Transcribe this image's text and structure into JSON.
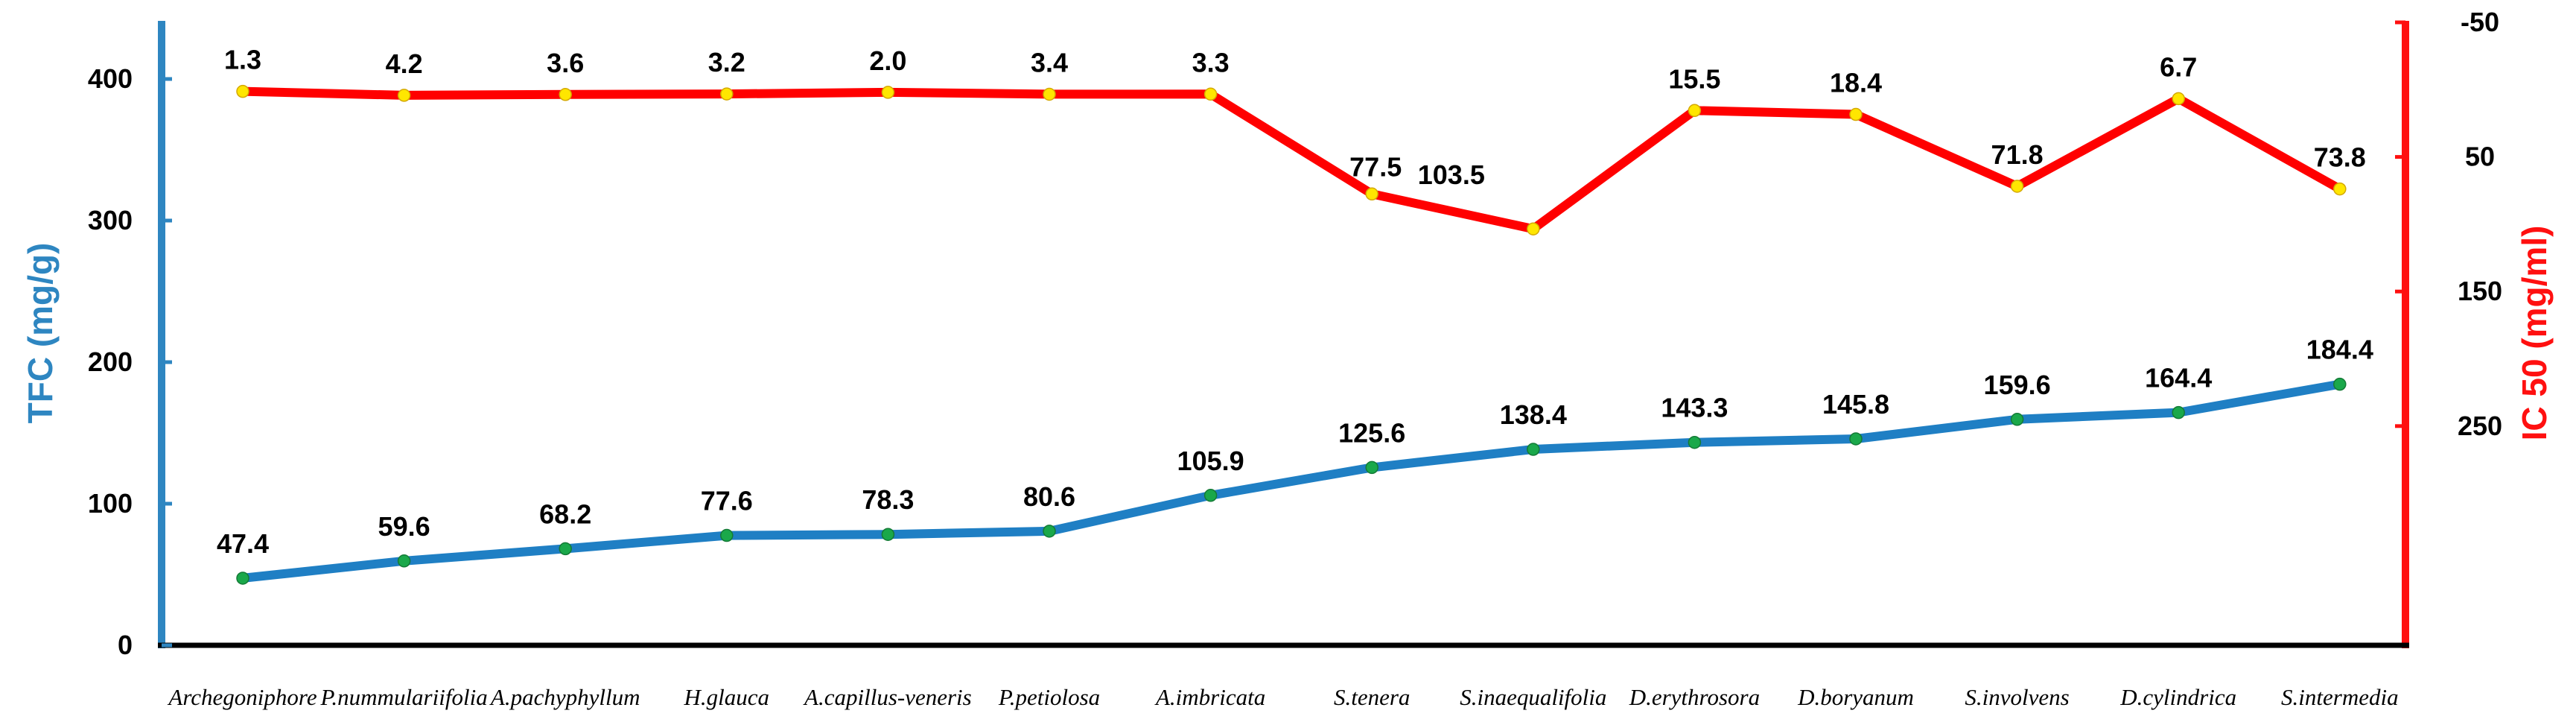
{
  "chart_data": {
    "type": "line",
    "categories": [
      "Archegoniphore",
      "P.nummulariifolia",
      "A.pachyphyllum",
      "H.glauca",
      "A.capillus-veneris",
      "P.petiolosa",
      "A.imbricata",
      "S.tenera",
      "S.inaequalifolia",
      "D.erythrosora",
      "D.boryanum",
      "S.involvens",
      "D.cylindrica",
      "S.intermedia"
    ],
    "series": [
      {
        "axis": "left",
        "color": "#1f7fc4",
        "marker_color": "#1aa84a",
        "values": [
          47.4,
          59.6,
          68.2,
          77.6,
          78.3,
          80.6,
          105.9,
          125.6,
          138.4,
          143.3,
          145.8,
          159.6,
          164.4,
          184.4
        ],
        "labels": [
          "47.4",
          "59.6",
          "68.2",
          "77.6",
          "78.3",
          "80.6",
          "105.9",
          "125.6",
          "138.4",
          "143.3",
          "145.8",
          "159.6",
          "164.4",
          "184.4"
        ]
      },
      {
        "axis": "right",
        "color": "#ff0000",
        "marker_color": "#ffe600",
        "values": [
          1.3,
          4.2,
          3.6,
          3.2,
          2.0,
          3.4,
          3.3,
          77.5,
          103.5,
          15.5,
          18.4,
          71.8,
          6.7,
          73.8
        ],
        "labels": [
          "1.3",
          "4.2",
          "3.6",
          "3.2",
          "2.0",
          "3.4",
          "3.3",
          "77.5",
          "103.5",
          "15.5",
          "18.4",
          "71.8",
          "6.7",
          "73.8"
        ]
      }
    ],
    "y_left": {
      "label": "TFC (mg/g)",
      "ticks": [
        0,
        100,
        200,
        300,
        400
      ],
      "tick_labels": [
        "0",
        "100",
        "200",
        "300",
        "400"
      ],
      "range": [
        0,
        400
      ],
      "color": "#2e86c1"
    },
    "y_right": {
      "label": "IC 50 (mg/ml)",
      "inverted": true,
      "ticks": [
        -50,
        50,
        150,
        250
      ],
      "tick_labels": [
        "-50",
        "50",
        "150",
        "250"
      ],
      "range": [
        -50,
        300
      ],
      "color": "#ff1010"
    },
    "grid": false,
    "legend": "none"
  }
}
